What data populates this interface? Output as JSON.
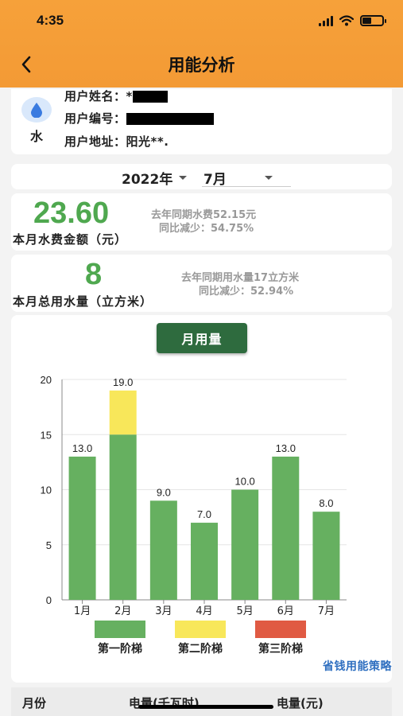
{
  "status_bar": {
    "time": "4:35"
  },
  "header": {
    "title": "用能分析",
    "back_icon": "chevron-left-icon"
  },
  "user": {
    "type_label": "水",
    "icon": "water-drop-icon",
    "name_label": "用户姓名：",
    "name_value": "*",
    "id_label": "用户编号：",
    "address_label": "用户地址：",
    "address_value": "阳光**."
  },
  "date": {
    "year": "2022年",
    "month": "7月"
  },
  "fee": {
    "amount": "23.60",
    "label": "本月水费金额（元）",
    "last_year": "去年同期水费52.15元",
    "change": "同比减少：54.75%"
  },
  "usage": {
    "amount": "8",
    "label": "本月总用水量（立方米）",
    "last_year": "去年同期用水量17立方米",
    "change": "同比减少：52.94%"
  },
  "chart": {
    "mode_button": "月用量",
    "tip_link": "省钱用能策略",
    "legend": [
      {
        "label": "第一阶梯",
        "color": "#66b060"
      },
      {
        "label": "第二阶梯",
        "color": "#f8e75a"
      },
      {
        "label": "第三阶梯",
        "color": "#e05a43"
      }
    ]
  },
  "chart_data": {
    "type": "bar",
    "stacked": true,
    "categories": [
      "1月",
      "2月",
      "3月",
      "4月",
      "5月",
      "6月",
      "7月"
    ],
    "series": [
      {
        "name": "第一阶梯",
        "color": "#66b060",
        "values": [
          13,
          15,
          9,
          7,
          10,
          13,
          8
        ]
      },
      {
        "name": "第二阶梯",
        "color": "#f8e75a",
        "values": [
          0,
          4,
          0,
          0,
          0,
          0,
          0
        ]
      },
      {
        "name": "第三阶梯",
        "color": "#e05a43",
        "values": [
          0,
          0,
          0,
          0,
          0,
          0,
          0
        ]
      }
    ],
    "totals": [
      "13.0",
      "19.0",
      "9.0",
      "7.0",
      "10.0",
      "13.0",
      "8.0"
    ],
    "yticks": [
      0,
      5,
      10,
      15,
      20
    ],
    "ylim": [
      0,
      20
    ],
    "grid": true
  },
  "table": {
    "col_month": "月份",
    "col_kwh": "电量(千瓦时)",
    "col_yuan": "电量(元)"
  }
}
